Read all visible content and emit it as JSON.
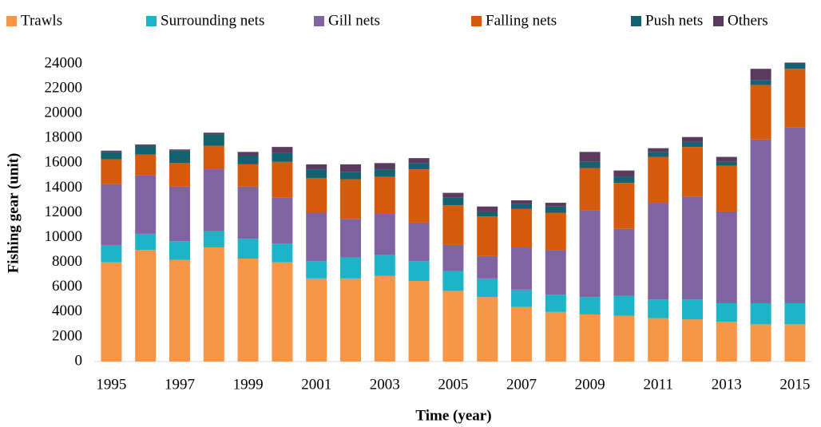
{
  "chart_data": {
    "type": "stacked_bar",
    "y_label": "Fishing gear (unit)",
    "x_label": "Time (year)",
    "categories": [
      "1995",
      null,
      "1997",
      null,
      "1999",
      null,
      "2001",
      null,
      "2003",
      null,
      "2005",
      null,
      "2007",
      null,
      "2009",
      null,
      "2011",
      null,
      "2013",
      null,
      "2015"
    ],
    "ylim": [
      0,
      24000
    ],
    "yticks": [
      0,
      2000,
      4000,
      6000,
      8000,
      10000,
      12000,
      14000,
      16000,
      18000,
      20000,
      22000,
      24000
    ],
    "grid": false,
    "legend": "top",
    "series": [
      {
        "name": "Trawls",
        "color": "#f79646",
        "values": [
          8000,
          9000,
          8200,
          9200,
          8300,
          8000,
          6700,
          6700,
          6900,
          6500,
          5700,
          5200,
          4400,
          4000,
          3800,
          3700,
          3500,
          3400,
          3200,
          3000,
          3000
        ]
      },
      {
        "name": "Surrounding nets",
        "color": "#1cb4c6",
        "values": [
          1400,
          1300,
          1500,
          1300,
          1600,
          1500,
          1400,
          1700,
          1700,
          1600,
          1600,
          1500,
          1400,
          1400,
          1400,
          1600,
          1500,
          1600,
          1500,
          1700,
          1700
        ]
      },
      {
        "name": "Gill nets",
        "color": "#8064a2",
        "values": [
          4900,
          4700,
          4400,
          5000,
          4200,
          3700,
          3900,
          3100,
          3300,
          3100,
          2100,
          1800,
          3400,
          3600,
          7000,
          5400,
          7800,
          8300,
          7400,
          13200,
          14200
        ]
      },
      {
        "name": "Falling nets",
        "color": "#d65a0c",
        "values": [
          2000,
          1700,
          1900,
          1900,
          1800,
          2900,
          2800,
          3200,
          3000,
          4300,
          3200,
          3200,
          3100,
          3000,
          3400,
          3700,
          3700,
          4000,
          3700,
          4400,
          4700
        ]
      },
      {
        "name": "Push nets",
        "color": "#13626f",
        "values": [
          600,
          700,
          1000,
          900,
          700,
          700,
          700,
          600,
          600,
          500,
          600,
          400,
          400,
          500,
          500,
          500,
          400,
          400,
          300,
          400,
          400
        ]
      },
      {
        "name": "Others",
        "color": "#5c3a60",
        "values": [
          100,
          100,
          100,
          150,
          300,
          500,
          400,
          600,
          500,
          400,
          400,
          400,
          300,
          300,
          800,
          500,
          300,
          400,
          400,
          900,
          100
        ]
      }
    ]
  }
}
